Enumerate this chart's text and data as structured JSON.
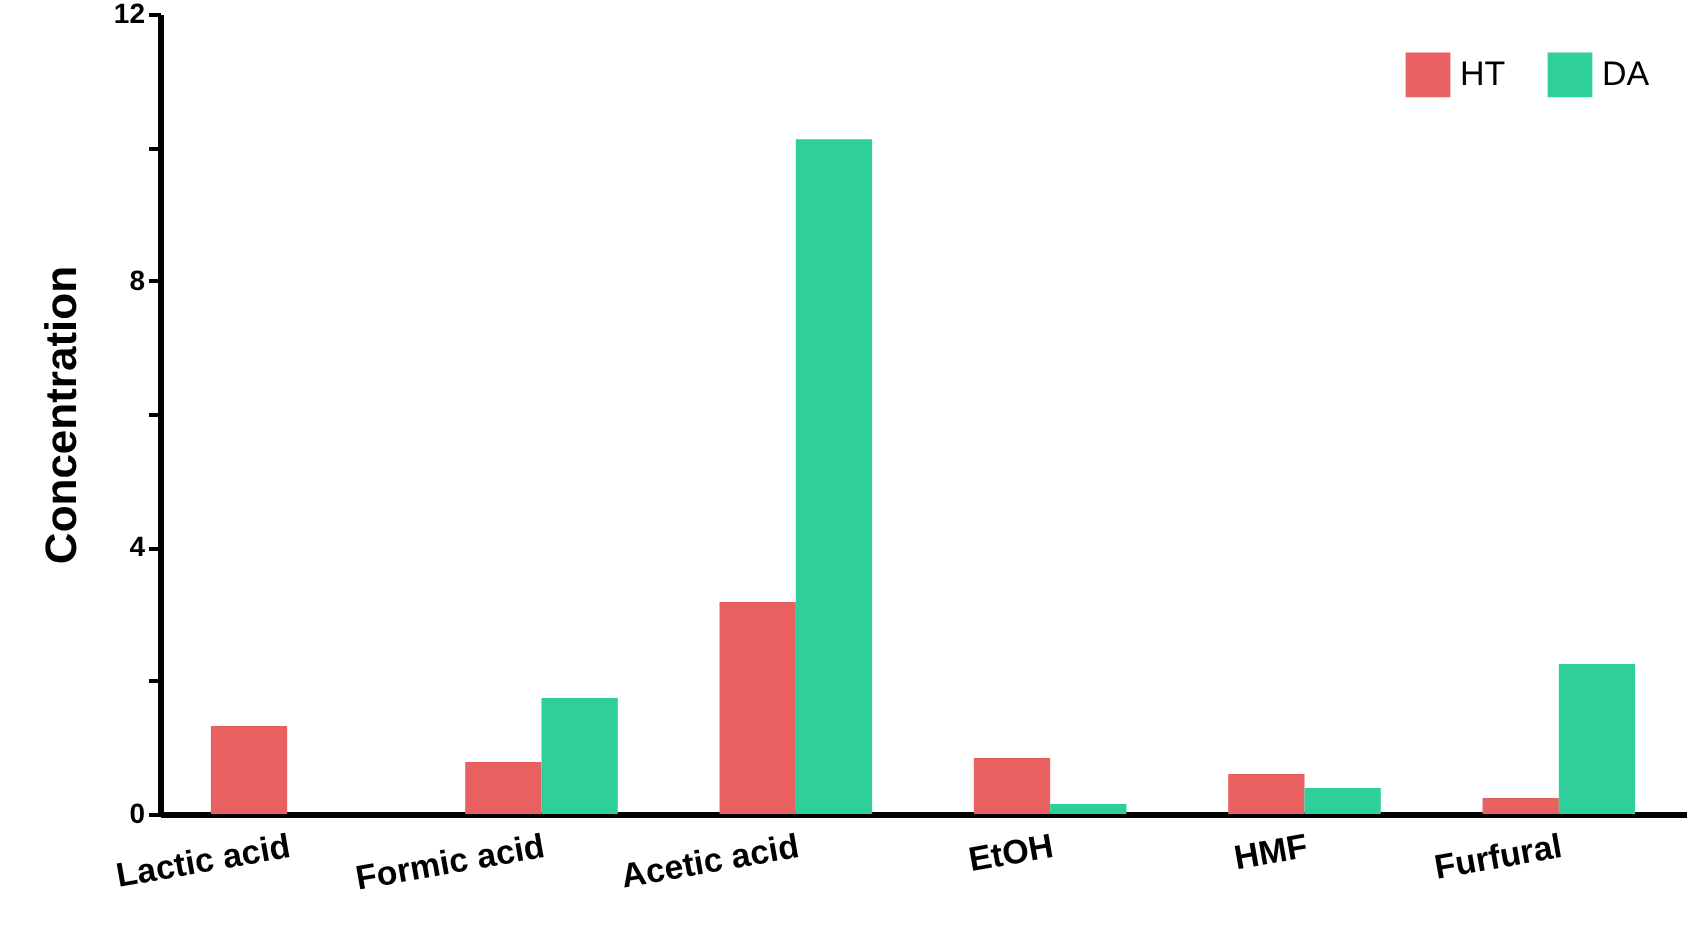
{
  "chart_data": {
    "type": "bar",
    "ylabel": "Concentration",
    "categories": [
      "Lactic acid",
      "Formic acid",
      "Acetic acid",
      "EtOH",
      "HMF",
      "Furfural"
    ],
    "series": [
      {
        "name": "HT",
        "color": "#e8605f",
        "values": [
          1.32,
          0.78,
          3.18,
          0.84,
          0.6,
          0.24
        ]
      },
      {
        "name": "DA",
        "color": "#2fcf9c",
        "values": [
          null,
          1.74,
          10.12,
          0.15,
          0.39,
          2.25
        ]
      }
    ],
    "ylim": [
      0,
      12
    ],
    "yticks": [
      0,
      {
        "value": 2,
        "label": null
      },
      4,
      {
        "value": 6,
        "label": null
      },
      8,
      {
        "value": 10,
        "label": null
      },
      12
    ],
    "grid": false,
    "legend": "top right"
  }
}
